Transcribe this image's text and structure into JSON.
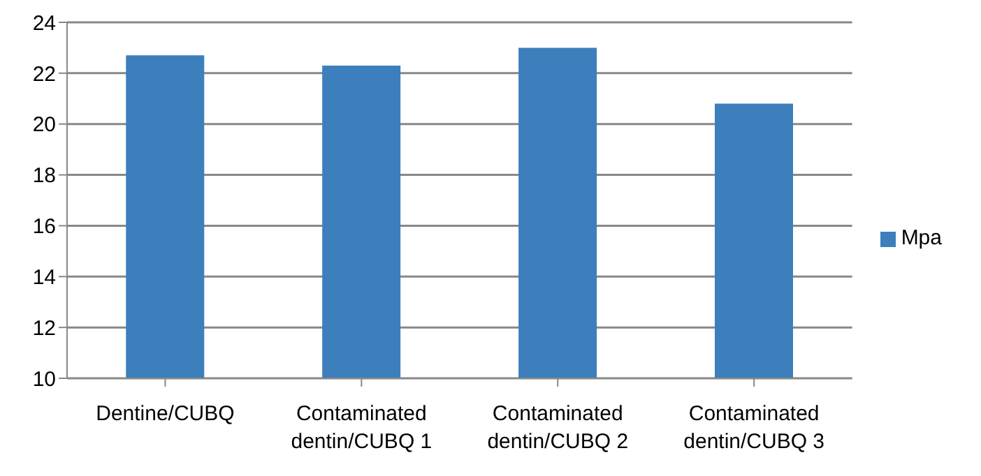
{
  "chart_data": {
    "type": "bar",
    "categories": [
      "Dentine/CUBQ",
      "Contaminated dentin/CUBQ 1",
      "Contaminated dentin/CUBQ 2",
      "Contaminated dentin/CUBQ 3"
    ],
    "series": [
      {
        "name": "Mpa",
        "color": "#3c7fbc",
        "values": [
          22.7,
          22.3,
          23.0,
          20.8
        ]
      }
    ],
    "ylim": [
      10,
      24
    ],
    "yticks": [
      10,
      12,
      14,
      16,
      18,
      20,
      22,
      24
    ],
    "grid": "y",
    "legend": "right"
  }
}
